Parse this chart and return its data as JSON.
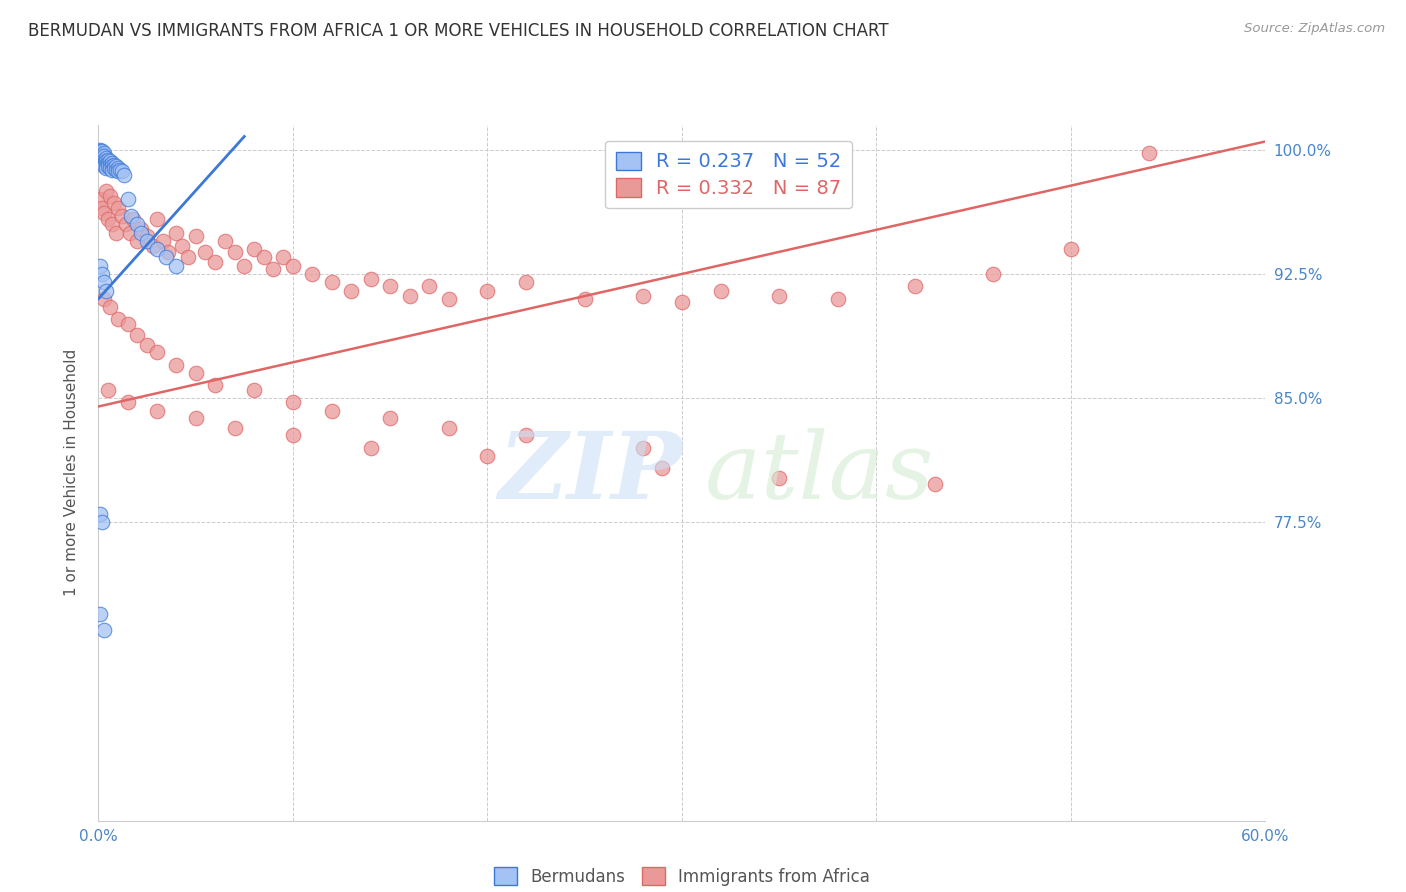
{
  "title": "BERMUDAN VS IMMIGRANTS FROM AFRICA 1 OR MORE VEHICLES IN HOUSEHOLD CORRELATION CHART",
  "source": "Source: ZipAtlas.com",
  "ylabel": "1 or more Vehicles in Household",
  "xmin": 0.0,
  "xmax": 0.6,
  "ymin": 0.595,
  "ymax": 1.015,
  "yticks": [
    0.775,
    0.85,
    0.925,
    1.0
  ],
  "ytick_labels": [
    "77.5%",
    "85.0%",
    "92.5%",
    "100.0%"
  ],
  "xticks": [
    0.0,
    0.1,
    0.2,
    0.3,
    0.4,
    0.5,
    0.6
  ],
  "xtick_labels": [
    "0.0%",
    "",
    "",
    "",
    "",
    "",
    "60.0%"
  ],
  "blue_R": "R = 0.237",
  "blue_N": "N = 52",
  "pink_R": "R = 0.332",
  "pink_N": "N = 87",
  "blue_color": "#a4c2f4",
  "pink_color": "#ea9999",
  "blue_line_color": "#3c78d8",
  "pink_line_color": "#e06666",
  "background_color": "#ffffff",
  "grid_color": "#cccccc",
  "tick_color": "#4a86c8",
  "blue_scatter_x": [
    0.001,
    0.001,
    0.001,
    0.002,
    0.002,
    0.002,
    0.002,
    0.002,
    0.003,
    0.003,
    0.003,
    0.003,
    0.003,
    0.003,
    0.004,
    0.004,
    0.004,
    0.004,
    0.005,
    0.005,
    0.005,
    0.006,
    0.006,
    0.006,
    0.007,
    0.007,
    0.007,
    0.008,
    0.008,
    0.009,
    0.009,
    0.01,
    0.01,
    0.011,
    0.012,
    0.013,
    0.015,
    0.017,
    0.02,
    0.022,
    0.025,
    0.03,
    0.035,
    0.04,
    0.001,
    0.002,
    0.003,
    0.004,
    0.001,
    0.002,
    0.001,
    0.003
  ],
  "blue_scatter_y": [
    1.0,
    0.999,
    0.998,
    0.999,
    0.997,
    0.996,
    0.995,
    0.994,
    0.998,
    0.996,
    0.994,
    0.992,
    0.991,
    0.99,
    0.995,
    0.993,
    0.991,
    0.989,
    0.994,
    0.992,
    0.99,
    0.993,
    0.991,
    0.989,
    0.992,
    0.99,
    0.988,
    0.991,
    0.989,
    0.99,
    0.988,
    0.989,
    0.987,
    0.988,
    0.987,
    0.985,
    0.97,
    0.96,
    0.955,
    0.95,
    0.945,
    0.94,
    0.935,
    0.93,
    0.93,
    0.925,
    0.92,
    0.915,
    0.78,
    0.775,
    0.72,
    0.71
  ],
  "pink_scatter_x": [
    0.001,
    0.002,
    0.003,
    0.004,
    0.005,
    0.006,
    0.007,
    0.008,
    0.009,
    0.01,
    0.012,
    0.014,
    0.016,
    0.018,
    0.02,
    0.022,
    0.025,
    0.028,
    0.03,
    0.033,
    0.036,
    0.04,
    0.043,
    0.046,
    0.05,
    0.055,
    0.06,
    0.065,
    0.07,
    0.075,
    0.08,
    0.085,
    0.09,
    0.095,
    0.1,
    0.11,
    0.12,
    0.13,
    0.14,
    0.15,
    0.16,
    0.17,
    0.18,
    0.2,
    0.22,
    0.25,
    0.28,
    0.3,
    0.32,
    0.35,
    0.38,
    0.42,
    0.46,
    0.5,
    0.54,
    0.003,
    0.006,
    0.01,
    0.015,
    0.02,
    0.025,
    0.03,
    0.04,
    0.05,
    0.06,
    0.08,
    0.1,
    0.12,
    0.15,
    0.18,
    0.22,
    0.28,
    0.005,
    0.015,
    0.03,
    0.05,
    0.07,
    0.1,
    0.14,
    0.2,
    0.29,
    0.35,
    0.43
  ],
  "pink_scatter_y": [
    0.97,
    0.965,
    0.962,
    0.975,
    0.958,
    0.972,
    0.955,
    0.968,
    0.95,
    0.965,
    0.96,
    0.955,
    0.95,
    0.958,
    0.945,
    0.952,
    0.948,
    0.942,
    0.958,
    0.945,
    0.938,
    0.95,
    0.942,
    0.935,
    0.948,
    0.938,
    0.932,
    0.945,
    0.938,
    0.93,
    0.94,
    0.935,
    0.928,
    0.935,
    0.93,
    0.925,
    0.92,
    0.915,
    0.922,
    0.918,
    0.912,
    0.918,
    0.91,
    0.915,
    0.92,
    0.91,
    0.912,
    0.908,
    0.915,
    0.912,
    0.91,
    0.918,
    0.925,
    0.94,
    0.998,
    0.91,
    0.905,
    0.898,
    0.895,
    0.888,
    0.882,
    0.878,
    0.87,
    0.865,
    0.858,
    0.855,
    0.848,
    0.842,
    0.838,
    0.832,
    0.828,
    0.82,
    0.855,
    0.848,
    0.842,
    0.838,
    0.832,
    0.828,
    0.82,
    0.815,
    0.808,
    0.802,
    0.798
  ],
  "blue_line_x": [
    0.0,
    0.075
  ],
  "blue_line_y": [
    0.91,
    1.008
  ],
  "pink_line_x": [
    0.0,
    0.6
  ],
  "pink_line_y": [
    0.845,
    1.005
  ]
}
